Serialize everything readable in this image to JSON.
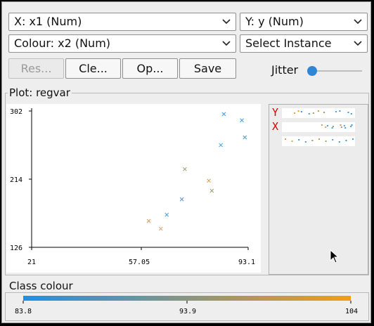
{
  "controls": {
    "x_axis": "X: x1 (Num)",
    "y_axis": "Y: y (Num)",
    "colour": "Colour: x2 (Num)",
    "instance": "Select Instance",
    "buttons": {
      "reset": "Res...",
      "clear": "Cle...",
      "open": "Op...",
      "save": "Save"
    },
    "jitter_label": "Jitter",
    "jitter_value": 0
  },
  "plot": {
    "title": "Plot: regvar"
  },
  "side_panel": {
    "y_label": "Y",
    "x_label": "X"
  },
  "class_colour": {
    "title": "Class colour",
    "ticks": [
      "83.8",
      "93.9",
      "104"
    ],
    "gradient_start": "#1e90e8",
    "gradient_end": "#f59a1a"
  },
  "chart_data": {
    "type": "scatter",
    "xlim": [
      21,
      93.1
    ],
    "ylim": [
      126,
      302
    ],
    "x_ticks": [
      "21",
      "57.05",
      "93.1"
    ],
    "y_ticks": [
      "302",
      "214",
      "126"
    ],
    "marker": "x",
    "points": [
      {
        "x": 60,
        "y": 160,
        "color": "#e69a3a"
      },
      {
        "x": 64,
        "y": 150,
        "color": "#d7a24a"
      },
      {
        "x": 66,
        "y": 168,
        "color": "#3d9ad6"
      },
      {
        "x": 71,
        "y": 188,
        "color": "#4aa0c8"
      },
      {
        "x": 72,
        "y": 227,
        "color": "#9a9a6a"
      },
      {
        "x": 80,
        "y": 212,
        "color": "#c99a4a"
      },
      {
        "x": 81,
        "y": 199,
        "color": "#9aa06a"
      },
      {
        "x": 84,
        "y": 258,
        "color": "#47a6d6"
      },
      {
        "x": 85,
        "y": 298,
        "color": "#3a9be0"
      },
      {
        "x": 91,
        "y": 290,
        "color": "#3b9ee0"
      },
      {
        "x": 92,
        "y": 268,
        "color": "#3d9be0"
      }
    ]
  }
}
